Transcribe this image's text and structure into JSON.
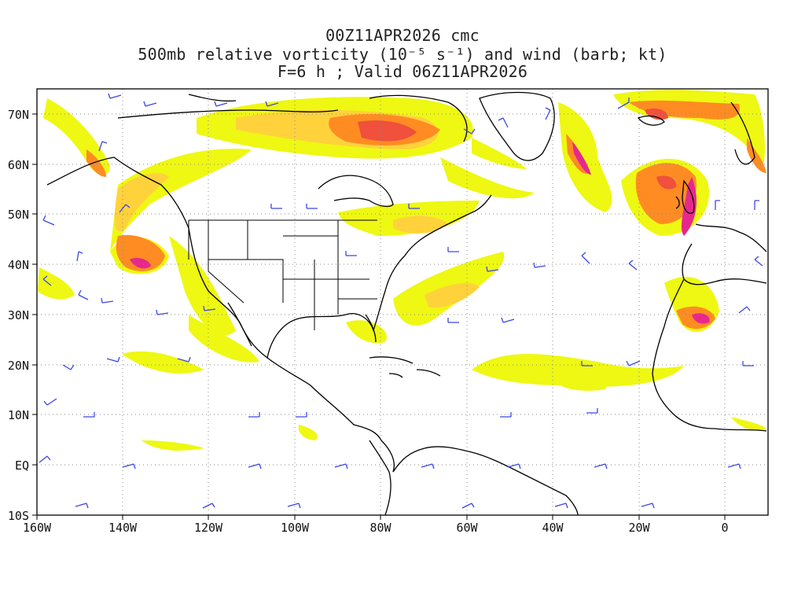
{
  "title": {
    "line1": "00Z11APR2026 cmc",
    "line2": "500mb relative vorticity (10⁻⁵ s⁻¹) and wind (barb; kt)",
    "line3": "F=6 h ; Valid 06Z11APR2026"
  },
  "axes": {
    "lon_labels": [
      "160W",
      "140W",
      "120W",
      "100W",
      "80W",
      "60W",
      "40W",
      "20W",
      "0"
    ],
    "lat_labels": [
      "10S",
      "EQ",
      "10N",
      "20N",
      "30N",
      "40N",
      "50N",
      "60N",
      "70N"
    ],
    "lon_range": [
      -160,
      10
    ],
    "lat_range": [
      -10,
      75
    ]
  },
  "colors": {
    "low": "#eef812",
    "mid": "#ffd23c",
    "high": "#ff8c22",
    "higher": "#f0503c",
    "max": "#e6288c",
    "barb": "#3c46e6",
    "coast": "#000000",
    "grid": "#8a8a8a"
  }
}
